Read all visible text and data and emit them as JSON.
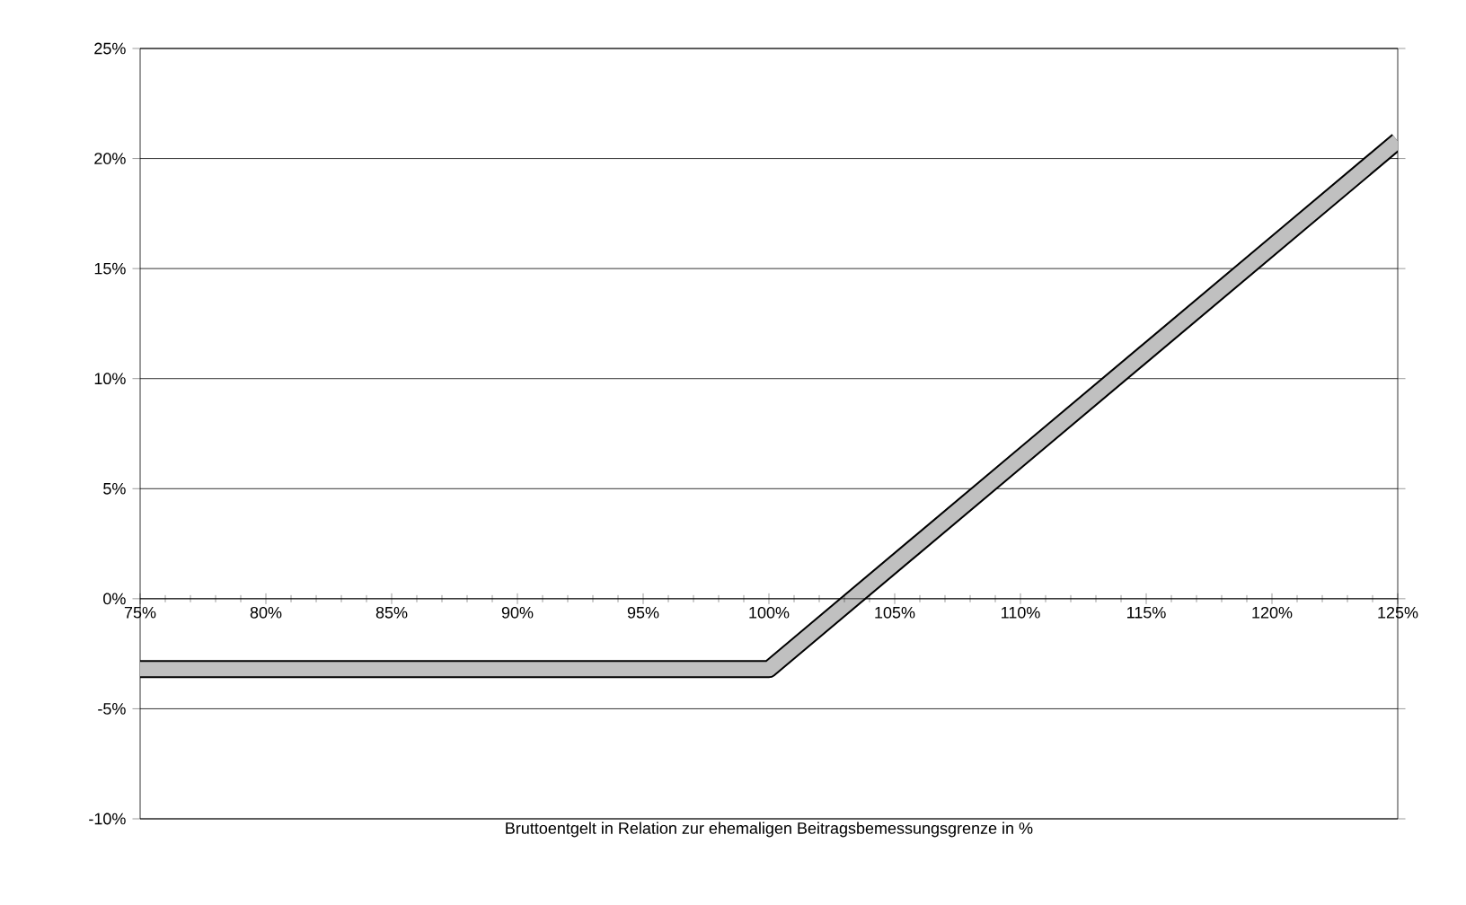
{
  "chart_data": {
    "type": "line",
    "xlabel": "Bruttoentgelt in Relation zur ehemaligen Beitragsbemessungsgrenze in %",
    "series": [
      {
        "color": "#c0c0c0",
        "x": [
          75,
          100,
          125
        ],
        "values": [
          -3.2,
          -3.2,
          20.8
        ]
      }
    ],
    "xlim": [
      75,
      125
    ],
    "ylim": [
      -10,
      25
    ],
    "xticks": [
      {
        "value": 75,
        "label": "75%"
      },
      {
        "value": 80,
        "label": "80%"
      },
      {
        "value": 85,
        "label": "85%"
      },
      {
        "value": 90,
        "label": "90%"
      },
      {
        "value": 95,
        "label": "95%"
      },
      {
        "value": 100,
        "label": "100%"
      },
      {
        "value": 105,
        "label": "105%"
      },
      {
        "value": 110,
        "label": "110%"
      },
      {
        "value": 115,
        "label": "115%"
      },
      {
        "value": 120,
        "label": "120%"
      },
      {
        "value": 125,
        "label": "125%"
      }
    ],
    "yticks": [
      {
        "value": -10,
        "label": "-10%"
      },
      {
        "value": -5,
        "label": "-5%"
      },
      {
        "value": 0,
        "label": "0%"
      },
      {
        "value": 5,
        "label": "5%"
      },
      {
        "value": 10,
        "label": "10%"
      },
      {
        "value": 15,
        "label": "15%"
      },
      {
        "value": 20,
        "label": "20%"
      },
      {
        "value": 25,
        "label": "25%"
      }
    ],
    "grid": "y",
    "marker": "none",
    "line_style": "solid"
  }
}
